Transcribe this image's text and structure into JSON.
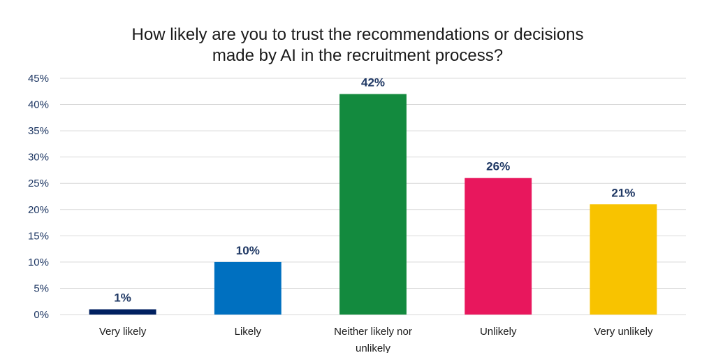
{
  "chart_data": {
    "type": "bar",
    "title_lines": [
      "How likely are you to trust the recommendations or decisions",
      "made by AI in the recruitment process?"
    ],
    "categories": [
      [
        "Very likely"
      ],
      [
        "Likely"
      ],
      [
        "Neither likely nor",
        "unlikely"
      ],
      [
        "Unlikely"
      ],
      [
        "Very unlikely"
      ]
    ],
    "values": [
      1,
      10,
      42,
      26,
      21
    ],
    "data_labels": [
      "1%",
      "10%",
      "42%",
      "26%",
      "21%"
    ],
    "colors": [
      "#002060",
      "#0070c0",
      "#138a3e",
      "#e8175d",
      "#f8c300"
    ],
    "ylim": [
      0,
      45
    ],
    "yticks": [
      0,
      5,
      10,
      15,
      20,
      25,
      30,
      35,
      40,
      45
    ],
    "ytick_labels": [
      "0%",
      "5%",
      "10%",
      "15%",
      "20%",
      "25%",
      "30%",
      "35%",
      "40%",
      "45%"
    ],
    "grid": true,
    "legend": "none"
  }
}
